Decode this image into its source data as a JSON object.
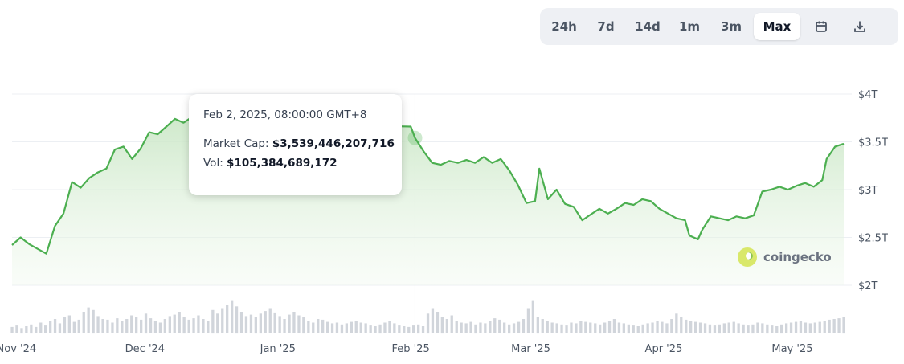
{
  "range_selector": {
    "options": [
      "24h",
      "7d",
      "14d",
      "1m",
      "3m",
      "Max"
    ],
    "active": "Max",
    "icons": [
      "calendar-icon",
      "download-icon"
    ]
  },
  "tooltip": {
    "date": "Feb 2, 2025, 08:00:00 GMT+8",
    "market_cap_label": "Market Cap:",
    "market_cap_value": "$3,539,446,207,716",
    "vol_label": "Vol:",
    "vol_value": "$105,384,689,172"
  },
  "brand": "coingecko",
  "colors": {
    "line": "#4caf50",
    "area_top": "#c8e6c4",
    "volume": "#d1d5db",
    "grid": "#eceff3"
  },
  "chart_data": {
    "type": "area",
    "series": [
      {
        "name": "Market Cap",
        "x": [
          "2024-10-31",
          "2024-11-02",
          "2024-11-04",
          "2024-11-06",
          "2024-11-08",
          "2024-11-10",
          "2024-11-12",
          "2024-11-14",
          "2024-11-16",
          "2024-11-18",
          "2024-11-20",
          "2024-11-22",
          "2024-11-24",
          "2024-11-26",
          "2024-11-28",
          "2024-11-30",
          "2024-12-02",
          "2024-12-04",
          "2024-12-06",
          "2024-12-08",
          "2024-12-10",
          "2024-12-12",
          "2024-12-14",
          "2024-12-16",
          "2024-12-17",
          "2024-12-19",
          "2025-02-01",
          "2025-02-02",
          "2025-02-04",
          "2025-02-06",
          "2025-02-08",
          "2025-02-10",
          "2025-02-12",
          "2025-02-14",
          "2025-02-16",
          "2025-02-18",
          "2025-02-20",
          "2025-02-22",
          "2025-02-24",
          "2025-02-26",
          "2025-02-28",
          "2025-03-02",
          "2025-03-03",
          "2025-03-05",
          "2025-03-07",
          "2025-03-09",
          "2025-03-11",
          "2025-03-13",
          "2025-03-15",
          "2025-03-17",
          "2025-03-19",
          "2025-03-21",
          "2025-03-23",
          "2025-03-25",
          "2025-03-27",
          "2025-03-29",
          "2025-03-31",
          "2025-04-02",
          "2025-04-04",
          "2025-04-06",
          "2025-04-07",
          "2025-04-09",
          "2025-04-10",
          "2025-04-12",
          "2025-04-14",
          "2025-04-16",
          "2025-04-18",
          "2025-04-20",
          "2025-04-22",
          "2025-04-24",
          "2025-04-26",
          "2025-04-28",
          "2025-04-30",
          "2025-05-02",
          "2025-05-04",
          "2025-05-06",
          "2025-05-08",
          "2025-05-09",
          "2025-05-11",
          "2025-05-13"
        ],
        "values": [
          2.42,
          2.5,
          2.43,
          2.38,
          2.33,
          2.62,
          2.75,
          3.08,
          3.02,
          3.12,
          3.18,
          3.22,
          3.42,
          3.45,
          3.32,
          3.43,
          3.6,
          3.58,
          3.66,
          3.74,
          3.7,
          3.76,
          3.79,
          3.82,
          3.86,
          3.7,
          3.66,
          3.54,
          3.4,
          3.28,
          3.26,
          3.3,
          3.28,
          3.31,
          3.28,
          3.34,
          3.28,
          3.32,
          3.2,
          3.05,
          2.86,
          2.88,
          3.22,
          2.9,
          3.0,
          2.85,
          2.82,
          2.68,
          2.74,
          2.8,
          2.75,
          2.8,
          2.86,
          2.84,
          2.9,
          2.88,
          2.8,
          2.75,
          2.7,
          2.68,
          2.52,
          2.48,
          2.58,
          2.72,
          2.7,
          2.68,
          2.72,
          2.7,
          2.73,
          2.98,
          3.0,
          3.03,
          3.0,
          3.04,
          3.07,
          3.03,
          3.1,
          3.32,
          3.45,
          3.48
        ]
      },
      {
        "name": "Volume",
        "x_start": "2024-10-31",
        "x_end": "2025-05-13",
        "values": [
          0.18,
          0.22,
          0.15,
          0.2,
          0.25,
          0.18,
          0.3,
          0.22,
          0.35,
          0.4,
          0.28,
          0.45,
          0.5,
          0.32,
          0.38,
          0.6,
          0.72,
          0.65,
          0.48,
          0.4,
          0.38,
          0.3,
          0.42,
          0.35,
          0.4,
          0.5,
          0.45,
          0.38,
          0.55,
          0.42,
          0.35,
          0.3,
          0.4,
          0.48,
          0.52,
          0.6,
          0.45,
          0.38,
          0.42,
          0.5,
          0.4,
          0.35,
          0.65,
          0.55,
          0.7,
          0.8,
          0.92,
          0.75,
          0.6,
          0.48,
          0.52,
          0.45,
          0.55,
          0.62,
          0.7,
          0.58,
          0.48,
          0.4,
          0.52,
          0.6,
          0.5,
          0.45,
          0.35,
          0.3,
          0.4,
          0.38,
          0.32,
          0.28,
          0.3,
          0.25,
          0.28,
          0.32,
          0.35,
          0.3,
          0.28,
          0.22,
          0.2,
          0.25,
          0.3,
          0.35,
          0.28,
          0.22,
          0.2,
          0.18,
          0.22,
          0.25,
          0.2,
          0.55,
          0.7,
          0.6,
          0.45,
          0.4,
          0.5,
          0.35,
          0.3,
          0.28,
          0.32,
          0.25,
          0.3,
          0.28,
          0.35,
          0.42,
          0.38,
          0.3,
          0.25,
          0.28,
          0.32,
          0.4,
          0.7,
          0.92,
          0.45,
          0.4,
          0.35,
          0.3,
          0.28,
          0.25,
          0.22,
          0.3,
          0.28,
          0.35,
          0.32,
          0.3,
          0.28,
          0.25,
          0.3,
          0.35,
          0.4,
          0.3,
          0.28,
          0.25,
          0.22,
          0.2,
          0.25,
          0.28,
          0.3,
          0.35,
          0.32,
          0.28,
          0.4,
          0.55,
          0.45,
          0.38,
          0.35,
          0.32,
          0.3,
          0.28,
          0.25,
          0.22,
          0.25,
          0.28,
          0.3,
          0.32,
          0.28,
          0.25,
          0.22,
          0.25,
          0.3,
          0.28,
          0.25,
          0.22,
          0.2,
          0.25,
          0.28,
          0.3,
          0.32,
          0.35,
          0.3,
          0.28,
          0.3,
          0.32,
          0.35,
          0.38,
          0.4,
          0.42,
          0.45
        ]
      }
    ],
    "y_ticks": [
      "$2T",
      "$2.5T",
      "$3T",
      "$3.5T",
      "$4T"
    ],
    "x_ticks": [
      "Nov '24",
      "Dec '24",
      "Jan '25",
      "Feb '25",
      "Mar '25",
      "Apr '25",
      "May '25"
    ],
    "ylim": [
      2.0,
      4.0
    ],
    "xlim": [
      "2024-10-31",
      "2025-05-13"
    ],
    "hover_date": "2025-02-02",
    "grid": true
  }
}
